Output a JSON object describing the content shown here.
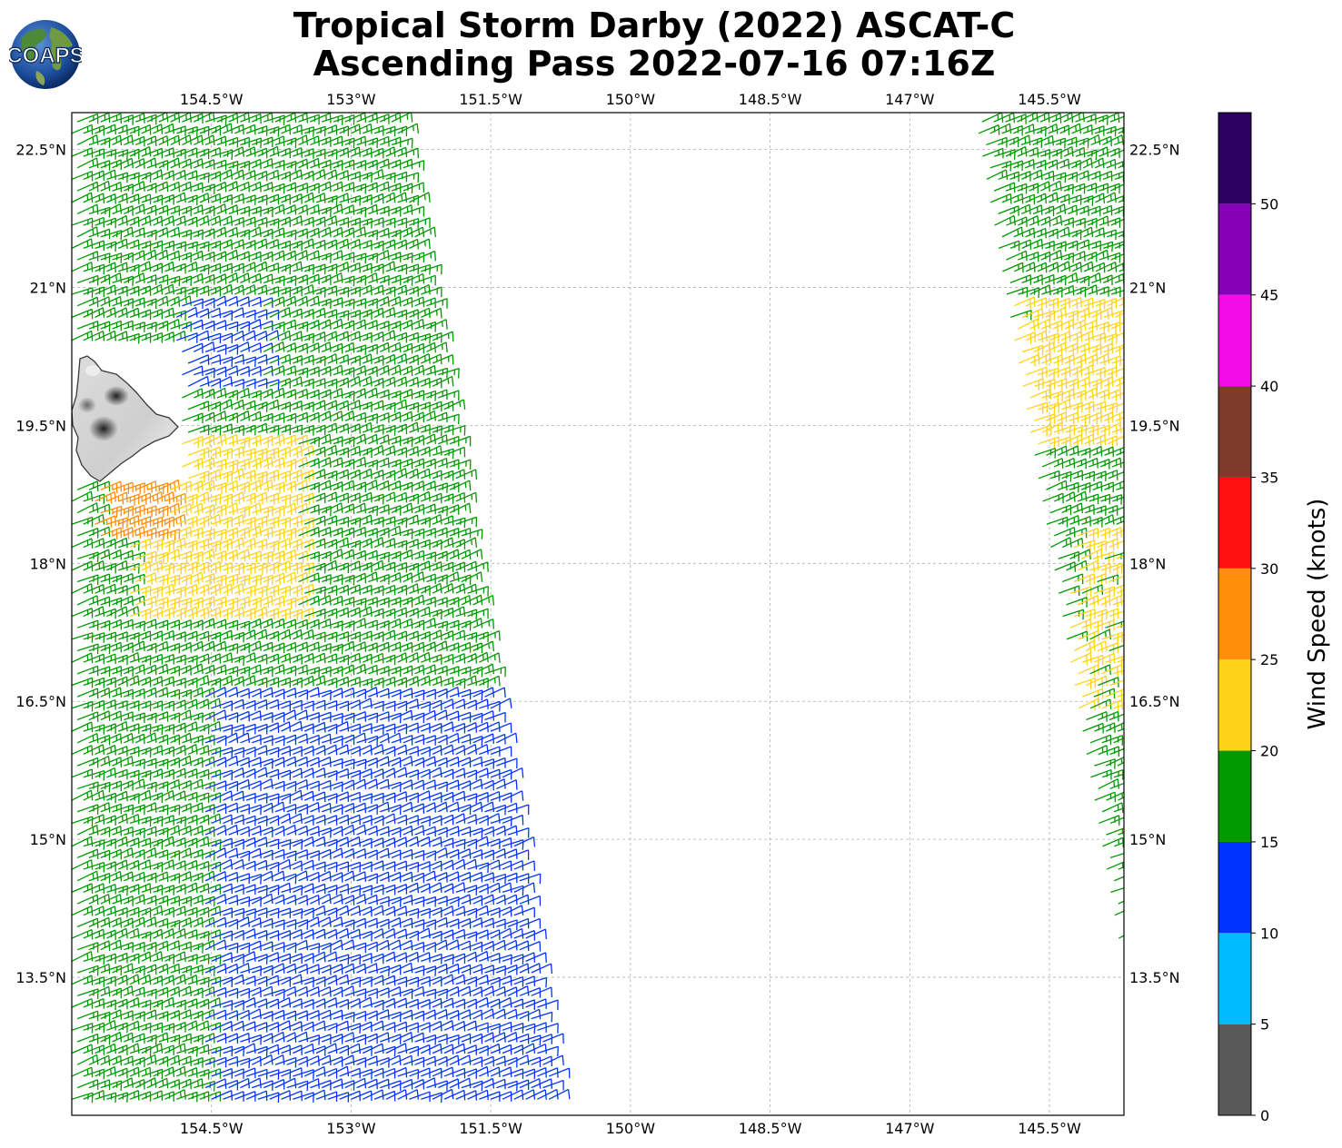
{
  "figure": {
    "title_line1": "Tropical Storm Darby (2022) ASCAT-C",
    "title_line2": "Ascending Pass 2022-07-16 07:16Z",
    "logo_text": "COAPS"
  },
  "map": {
    "lon_range": [
      -156,
      -144.7
    ],
    "lat_range": [
      12.0,
      22.9
    ],
    "lon_ticks": [
      -154.5,
      -153,
      -151.5,
      -150,
      -148.5,
      -147,
      -145.5
    ],
    "lon_labels": [
      "154.5°W",
      "153°W",
      "151.5°W",
      "150°W",
      "148.5°W",
      "147°W",
      "145.5°W"
    ],
    "lat_ticks": [
      13.5,
      15,
      16.5,
      18,
      19.5,
      21,
      22.5
    ],
    "lat_labels": [
      "13.5°N",
      "15°N",
      "16.5°N",
      "18°N",
      "19.5°N",
      "21°N",
      "22.5°N"
    ],
    "gridlines": true,
    "land": "Big Island of Hawaii"
  },
  "colorbar": {
    "label": "Wind Speed (knots)",
    "bounds": [
      0,
      5,
      10,
      15,
      20,
      25,
      30,
      35,
      40,
      45,
      50,
      55
    ],
    "tick_labels": [
      "0",
      "5",
      "10",
      "15",
      "20",
      "25",
      "30",
      "35",
      "40",
      "45",
      "50"
    ],
    "colors": [
      "#595959",
      "#00bbff",
      "#0033ff",
      "#009900",
      "#ffd319",
      "#ff8e0b",
      "#ff1010",
      "#7f3b2a",
      "#f20de8",
      "#8500b6",
      "#2c0060"
    ]
  },
  "swaths": [
    {
      "name": "west-swath",
      "lat_top": 22.9,
      "lat_bottom": 12.1,
      "lon_west_top": -156.0,
      "lon_east_top": -152.5,
      "lon_west_bottom": -156.0,
      "lon_east_bottom": -150.8
    },
    {
      "name": "east-swath",
      "lat_top": 22.9,
      "lat_bottom": 13.6,
      "lon_west_top": -146.3,
      "lon_east_top": -144.7,
      "lon_west_bottom": -144.7,
      "lon_east_bottom": -144.7
    }
  ],
  "wind_regions": [
    {
      "swath": "west",
      "lat_min": 19.8,
      "lat_max": 20.9,
      "lon_min": -154.9,
      "lon_max": -154.0,
      "speed_kt": 12
    },
    {
      "swath": "west",
      "lat_min": 17.3,
      "lat_max": 19.3,
      "lon_min": -155.4,
      "lon_max": -153.6,
      "speed_kt": 22
    },
    {
      "swath": "west",
      "lat_min": 18.2,
      "lat_max": 18.9,
      "lon_min": -155.8,
      "lon_max": -155.0,
      "speed_kt": 27
    },
    {
      "swath": "west",
      "lat_min": 12.1,
      "lat_max": 16.6,
      "lon_min": -154.6,
      "lon_max": -150.8,
      "speed_kt": 12
    },
    {
      "swath": "east",
      "lat_min": 19.2,
      "lat_max": 20.9,
      "lon_min": -145.9,
      "lon_max": -144.7,
      "speed_kt": 22
    },
    {
      "swath": "east",
      "lat_min": 16.4,
      "lat_max": 18.3,
      "lon_min": -145.3,
      "lon_max": -144.7,
      "speed_kt": 21
    }
  ],
  "background_wind_kt": 17
}
